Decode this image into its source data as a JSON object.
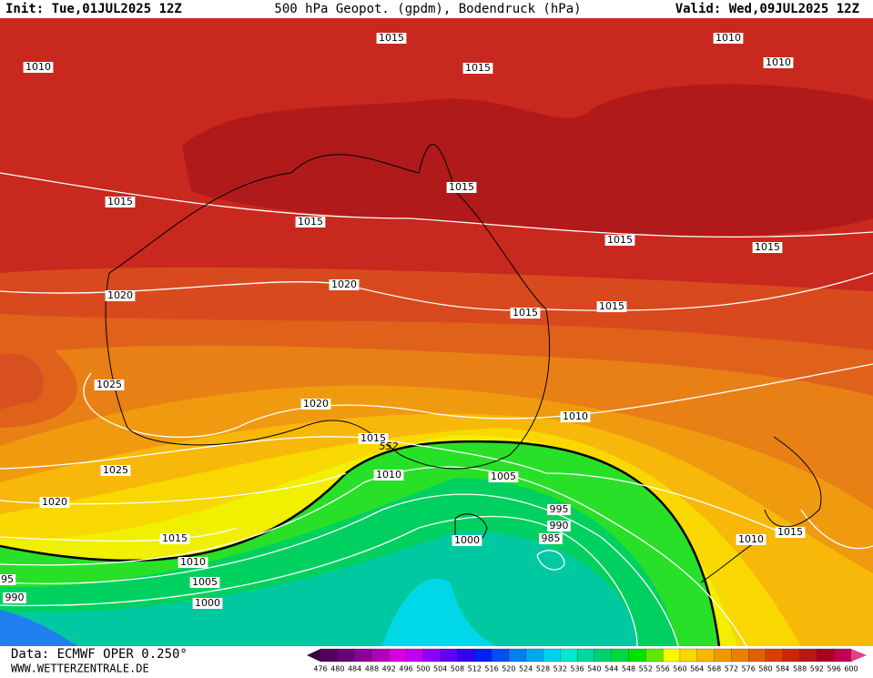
{
  "header": {
    "init": "Init: Tue,01JUL2025 12Z",
    "title": "500 hPa Geopot. (gpdm), Bodendruck (hPa)",
    "valid": "Valid: Wed,09JUL2025 12Z"
  },
  "map": {
    "contour_labels": [
      "1015",
      "1010",
      "1010",
      "1015",
      "1010",
      "1015",
      "1015",
      "1015",
      "1015",
      "1015",
      "1020",
      "1020",
      "1015",
      "1015",
      "1025",
      "1020",
      "1010",
      "1015",
      "552",
      "1010",
      "1005",
      "1025",
      "1020",
      "995",
      "990",
      "985",
      "1000",
      "1015",
      "1010",
      "1015",
      "1010",
      "1005",
      "95",
      "990",
      "1000"
    ]
  },
  "legend": {
    "labels": [
      476,
      480,
      484,
      488,
      492,
      496,
      500,
      504,
      508,
      512,
      516,
      520,
      524,
      528,
      532,
      536,
      540,
      544,
      548,
      552,
      556,
      560,
      564,
      568,
      572,
      576,
      580,
      584,
      588,
      592,
      596,
      600
    ],
    "colors": [
      "#50005a",
      "#6a0078",
      "#8a0098",
      "#b000b8",
      "#d800d8",
      "#c000f0",
      "#9000f0",
      "#6000f0",
      "#3000f0",
      "#0020f0",
      "#0050f0",
      "#0080f0",
      "#00a8f0",
      "#00d0f0",
      "#00e8d0",
      "#00d8a0",
      "#00d070",
      "#00d840",
      "#00e000",
      "#60e800",
      "#f8f800",
      "#f8d800",
      "#f8b800",
      "#f09800",
      "#e88000",
      "#e06000",
      "#d84000",
      "#c82800",
      "#b81818",
      "#a80020",
      "#c00050"
    ]
  },
  "footer": {
    "source": "Data: ECMWF OPER 0.250°",
    "site": "WWW.WETTERZENTRALE.DE"
  }
}
